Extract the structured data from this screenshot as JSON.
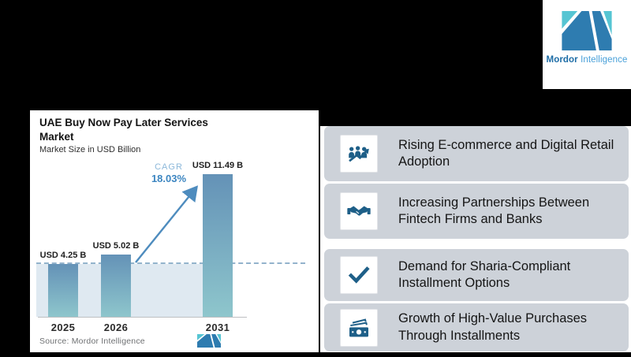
{
  "brand": {
    "name_bold": "Mordor",
    "name_light": "Intelligence",
    "colors": {
      "teal": "#56c5d3",
      "blue": "#2e7cb0",
      "text_bold": "#1c6ca6",
      "text_light": "#48a0d9"
    }
  },
  "chart_card": {
    "title_line1": "UAE Buy Now Pay Later Services",
    "title_line2": "Market",
    "subtitle": "Market Size in USD Billion",
    "cagr_label": "CAGR",
    "cagr_value": "18.03%",
    "source_label": "Source:",
    "source_value": "Mordor Intelligence"
  },
  "chart_data": {
    "type": "bar",
    "title": "UAE Buy Now Pay Later Services Market",
    "subtitle": "Market Size in USD Billion",
    "unit": "USD Billion",
    "categories": [
      "2025",
      "2026",
      "2031"
    ],
    "values": [
      4.25,
      5.02,
      11.49
    ],
    "labels": [
      "USD 4.25 B",
      "USD 5.02 B",
      "USD 11.49 B"
    ],
    "cagr_percent": 18.03,
    "ylim": [
      0,
      11.49
    ],
    "grid": false,
    "legend": false,
    "annotations": [
      "dashed reference line at 2025 level",
      "growth arrow from 2026 to 2031"
    ],
    "bar_color_top": "#6492b7",
    "bar_color_bottom": "#8ec6cc",
    "reference_fill_color": "#dfe9f1"
  },
  "drivers": [
    {
      "icon": "people-growth-icon",
      "text": "Rising E-commerce and Digital Retail Adoption"
    },
    {
      "icon": "handshake-icon",
      "text": "Increasing Partnerships Between Fintech Firms and Banks"
    },
    {
      "icon": "checkmark-icon",
      "text": "Demand for Sharia-Compliant Installment Options"
    },
    {
      "icon": "banknote-icon",
      "text": "Growth of High-Value Purchases Through Installments"
    }
  ],
  "panel_color": "#cdd2d9",
  "icon_color": "#1e5f88",
  "background_color": "#000000"
}
